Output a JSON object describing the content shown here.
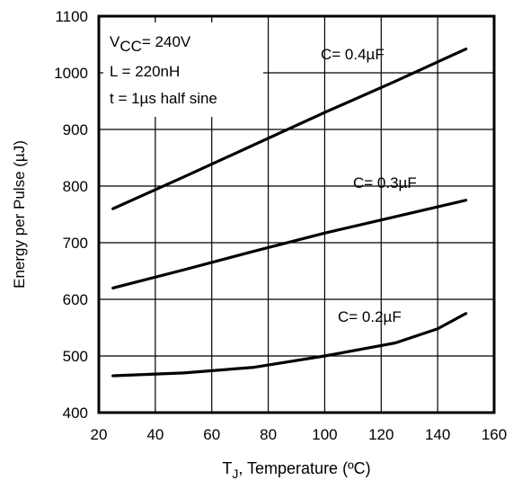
{
  "chart_data": {
    "type": "line",
    "xlabel_main": "T",
    "xlabel_sub": "J",
    "xlabel_rest": ", Temperature (ºC)",
    "ylabel": "Energy per Pulse (µJ)",
    "xlim": [
      20,
      160
    ],
    "ylim": [
      400,
      1100
    ],
    "x_ticks": [
      20,
      40,
      60,
      80,
      100,
      120,
      140,
      160
    ],
    "y_ticks": [
      400,
      500,
      600,
      700,
      800,
      900,
      1000,
      1100
    ],
    "grid": true,
    "conditions": {
      "vcc_main": "V",
      "vcc_sub": "CC",
      "vcc_value": "= 240V",
      "inductance": "L = 220nH",
      "pulse": "t = 1µs half sine"
    },
    "series": [
      {
        "name": "C= 0.4µF",
        "x": [
          25,
          50,
          75,
          100,
          125,
          150
        ],
        "y": [
          760,
          816,
          873,
          930,
          985,
          1042
        ]
      },
      {
        "name": "C= 0.3µF",
        "x": [
          25,
          50,
          75,
          100,
          125,
          150
        ],
        "y": [
          620,
          652,
          685,
          717,
          746,
          775
        ]
      },
      {
        "name": "C= 0.2µF",
        "x": [
          25,
          50,
          75,
          100,
          125,
          140,
          150
        ],
        "y": [
          465,
          470,
          480,
          500,
          523,
          548,
          575
        ]
      }
    ]
  }
}
